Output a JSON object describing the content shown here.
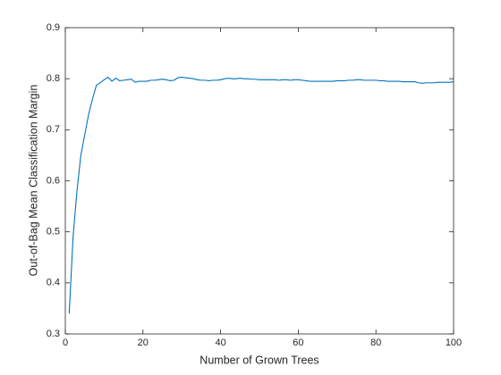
{
  "chart_data": {
    "type": "line",
    "xlabel": "Number of Grown Trees",
    "ylabel": "Out-of-Bag Mean Classification Margin",
    "x": [
      1,
      2,
      3,
      4,
      5,
      6,
      7,
      8,
      9,
      10,
      11,
      12,
      13,
      14,
      15,
      16,
      17,
      18,
      19,
      20,
      21,
      22,
      23,
      24,
      25,
      26,
      27,
      28,
      29,
      30,
      31,
      32,
      33,
      34,
      35,
      36,
      37,
      38,
      39,
      40,
      41,
      42,
      43,
      44,
      45,
      46,
      47,
      48,
      49,
      50,
      51,
      52,
      53,
      54,
      55,
      56,
      57,
      58,
      59,
      60,
      61,
      62,
      63,
      64,
      65,
      66,
      67,
      68,
      69,
      70,
      71,
      72,
      73,
      74,
      75,
      76,
      77,
      78,
      79,
      80,
      81,
      82,
      83,
      84,
      85,
      86,
      87,
      88,
      89,
      90,
      91,
      92,
      93,
      94,
      95,
      96,
      97,
      98,
      99,
      100
    ],
    "series": [
      {
        "color": "#0072bd",
        "values": [
          0.34,
          0.49,
          0.58,
          0.65,
          0.69,
          0.73,
          0.76,
          0.787,
          0.792,
          0.798,
          0.803,
          0.795,
          0.801,
          0.796,
          0.797,
          0.798,
          0.799,
          0.793,
          0.795,
          0.795,
          0.795,
          0.797,
          0.797,
          0.798,
          0.799,
          0.798,
          0.796,
          0.797,
          0.802,
          0.803,
          0.802,
          0.801,
          0.8,
          0.798,
          0.797,
          0.797,
          0.796,
          0.797,
          0.797,
          0.798,
          0.8,
          0.801,
          0.8,
          0.8,
          0.801,
          0.8,
          0.8,
          0.799,
          0.799,
          0.798,
          0.798,
          0.798,
          0.798,
          0.798,
          0.797,
          0.798,
          0.798,
          0.797,
          0.798,
          0.798,
          0.797,
          0.796,
          0.795,
          0.795,
          0.795,
          0.795,
          0.795,
          0.795,
          0.795,
          0.796,
          0.796,
          0.796,
          0.797,
          0.797,
          0.798,
          0.798,
          0.797,
          0.797,
          0.797,
          0.797,
          0.796,
          0.796,
          0.795,
          0.795,
          0.795,
          0.795,
          0.794,
          0.794,
          0.794,
          0.794,
          0.792,
          0.791,
          0.792,
          0.792,
          0.792,
          0.793,
          0.793,
          0.793,
          0.793,
          0.794
        ]
      }
    ],
    "xlim": [
      0,
      100
    ],
    "xticks": [
      0,
      20,
      40,
      60,
      80,
      100
    ],
    "ylim": [
      0.3,
      0.9
    ],
    "yticks": [
      0.3,
      0.4,
      0.5,
      0.6,
      0.7,
      0.8,
      0.9
    ]
  }
}
